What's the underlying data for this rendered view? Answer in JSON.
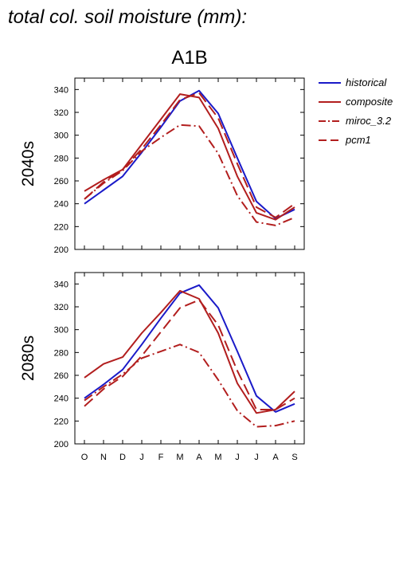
{
  "page": {
    "title": "total col. soil moisture (mm):"
  },
  "chart_data": {
    "type": "line",
    "title": "A1B",
    "categories": [
      "O",
      "N",
      "D",
      "J",
      "F",
      "M",
      "A",
      "M",
      "J",
      "J",
      "A",
      "S"
    ],
    "ylim": [
      200,
      350
    ],
    "yticks": [
      200,
      220,
      240,
      260,
      280,
      300,
      320,
      340
    ],
    "grid": false,
    "legend_position": "right",
    "legend": [
      {
        "name": "historical",
        "color": "#1a1ac8",
        "dash": "solid"
      },
      {
        "name": "composite",
        "color": "#b21e1e",
        "dash": "solid"
      },
      {
        "name": "miroc_3.2",
        "color": "#b21e1e",
        "dash": "dash-dot"
      },
      {
        "name": "pcm1",
        "color": "#b21e1e",
        "dash": "dashed"
      }
    ],
    "panels": [
      {
        "label": "2040s",
        "series": [
          {
            "name": "historical",
            "values": [
              240,
              252,
              264,
              285,
              307,
              330,
              339,
              319,
              280,
              242,
              227,
              235
            ]
          },
          {
            "name": "composite",
            "values": [
              251,
              261,
              270,
              292,
              314,
              336,
              333,
              306,
              264,
              232,
              226,
              237
            ]
          },
          {
            "name": "miroc_3.2",
            "values": [
              244,
              258,
              269,
              286,
              298,
              309,
              308,
              284,
              247,
              224,
              221,
              228
            ]
          },
          {
            "name": "pcm1",
            "values": [
              244,
              259,
              270,
              288,
              309,
              331,
              337,
              315,
              275,
              237,
              228,
              240
            ]
          }
        ]
      },
      {
        "label": "2080s",
        "series": [
          {
            "name": "historical",
            "values": [
              240,
              252,
              265,
              287,
              310,
              332,
              339,
              319,
              281,
              242,
              228,
              235
            ]
          },
          {
            "name": "composite",
            "values": [
              258,
              270,
              276,
              297,
              315,
              334,
              327,
              297,
              253,
              227,
              230,
              246
            ]
          },
          {
            "name": "miroc_3.2",
            "values": [
              238,
              250,
              261,
              275,
              281,
              287,
              280,
              256,
              229,
              215,
              216,
              220
            ]
          },
          {
            "name": "pcm1",
            "values": [
              233,
              248,
              259,
              277,
              298,
              319,
              326,
              304,
              264,
              230,
              230,
              240
            ]
          }
        ]
      }
    ]
  }
}
